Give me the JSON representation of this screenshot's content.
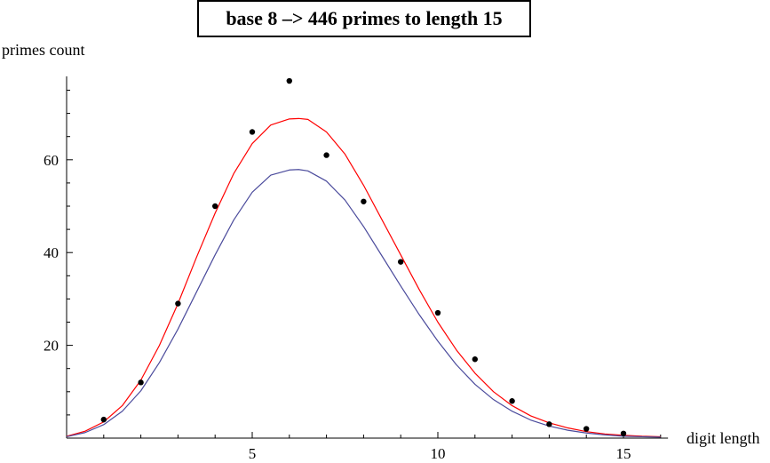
{
  "chart_data": {
    "type": "scatter",
    "title": "base 8  –> 446 primes to length 15",
    "xlabel": "digit length",
    "ylabel": "primes count",
    "xlim": [
      0,
      16.2
    ],
    "ylim": [
      0,
      78
    ],
    "x_ticks": [
      5,
      10,
      15
    ],
    "y_ticks": [
      20,
      40,
      60
    ],
    "x_tick_labels": [
      "5",
      "10",
      "15"
    ],
    "y_tick_labels": [
      "20",
      "40",
      "60"
    ],
    "grid": false,
    "series": [
      {
        "kind": "points",
        "color": "#000000",
        "x": [
          1,
          2,
          3,
          4,
          5,
          6,
          7,
          8,
          9,
          10,
          11,
          12,
          13,
          14,
          15
        ],
        "y": [
          4,
          12,
          29,
          50,
          66,
          77,
          61,
          51,
          38,
          27,
          17,
          8,
          3,
          2,
          1
        ]
      },
      {
        "kind": "curve",
        "color": "#ff0000",
        "x": [
          0,
          0.5,
          1,
          1.5,
          2,
          2.5,
          3,
          3.5,
          4,
          4.5,
          5,
          5.5,
          6,
          6.25,
          6.5,
          7,
          7.5,
          8,
          8.5,
          9,
          9.5,
          10,
          10.5,
          11,
          11.5,
          12,
          12.5,
          13,
          13.5,
          14,
          14.5,
          15,
          15.5,
          16
        ],
        "y": [
          0.4,
          1.5,
          3.5,
          7,
          12.5,
          20,
          29,
          39,
          48.5,
          57,
          63.5,
          67.5,
          68.8,
          68.9,
          68.7,
          66,
          61.2,
          54.5,
          47,
          39.5,
          32,
          25,
          19,
          14,
          10,
          7,
          4.8,
          3.3,
          2.2,
          1.4,
          0.9,
          0.6,
          0.4,
          0.3
        ]
      },
      {
        "kind": "curve",
        "color": "#4b4b9c",
        "x": [
          0,
          0.5,
          1,
          1.5,
          2,
          2.5,
          3,
          3.5,
          4,
          4.5,
          5,
          5.5,
          6,
          6.25,
          6.5,
          7,
          7.5,
          8,
          8.5,
          9,
          9.5,
          10,
          10.5,
          11,
          11.5,
          12,
          12.5,
          13,
          13.5,
          14,
          14.5,
          15,
          15.5,
          16
        ],
        "y": [
          0.3,
          1.2,
          2.9,
          5.8,
          10.2,
          16.3,
          23.5,
          31.5,
          39.5,
          47,
          53,
          56.7,
          57.8,
          57.9,
          57.6,
          55.4,
          51.3,
          45.6,
          39.2,
          32.8,
          26.6,
          20.9,
          15.8,
          11.6,
          8.3,
          5.8,
          3.9,
          2.6,
          1.7,
          1.1,
          0.7,
          0.4,
          0.3,
          0.2
        ]
      }
    ]
  }
}
